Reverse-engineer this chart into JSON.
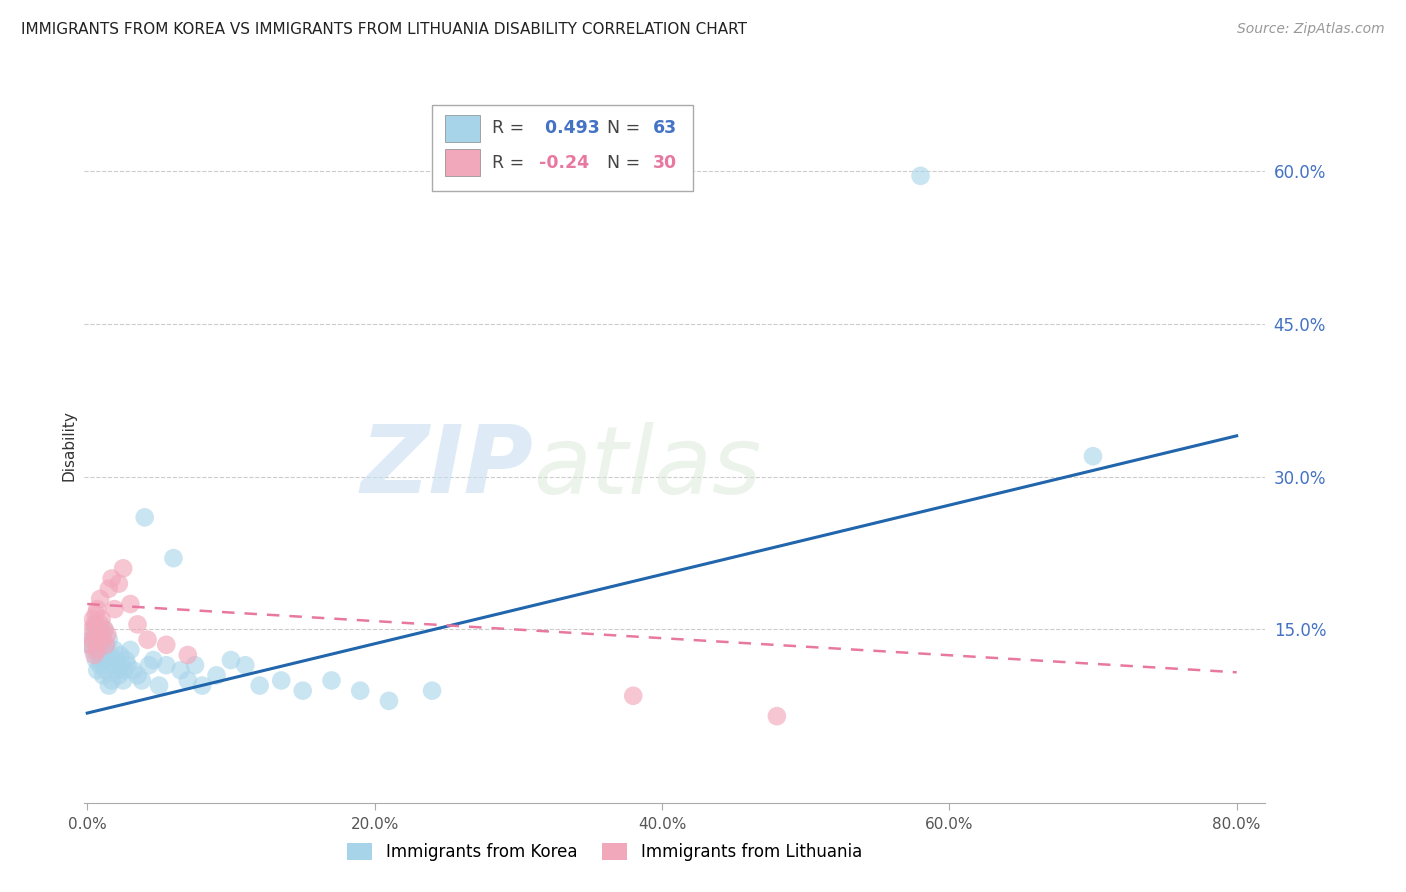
{
  "title": "IMMIGRANTS FROM KOREA VS IMMIGRANTS FROM LITHUANIA DISABILITY CORRELATION CHART",
  "source": "Source: ZipAtlas.com",
  "ylabel": "Disability",
  "xlim": [
    -0.002,
    0.82
  ],
  "ylim": [
    -0.02,
    0.68
  ],
  "yticks": [
    0.15,
    0.3,
    0.45,
    0.6
  ],
  "ytick_labels": [
    "15.0%",
    "30.0%",
    "45.0%",
    "60.0%"
  ],
  "xticks": [
    0.0,
    0.2,
    0.4,
    0.6,
    0.8
  ],
  "xtick_labels": [
    "0.0%",
    "20.0%",
    "40.0%",
    "60.0%",
    "80.0%"
  ],
  "korea_R": 0.493,
  "korea_N": 63,
  "lithuania_R": -0.24,
  "lithuania_N": 30,
  "korea_color": "#a8d4ea",
  "lithuania_color": "#f2a8bb",
  "korea_line_color": "#2166ac",
  "lithuania_line_color": "#e878a0",
  "watermark_zip": "ZIP",
  "watermark_atlas": "atlas",
  "korea_x": [
    0.002,
    0.003,
    0.004,
    0.005,
    0.005,
    0.006,
    0.006,
    0.007,
    0.007,
    0.008,
    0.008,
    0.009,
    0.009,
    0.01,
    0.01,
    0.011,
    0.011,
    0.012,
    0.012,
    0.013,
    0.013,
    0.014,
    0.015,
    0.015,
    0.016,
    0.017,
    0.018,
    0.019,
    0.02,
    0.021,
    0.022,
    0.023,
    0.024,
    0.025,
    0.026,
    0.027,
    0.028,
    0.03,
    0.032,
    0.035,
    0.038,
    0.04,
    0.043,
    0.046,
    0.05,
    0.055,
    0.06,
    0.065,
    0.07,
    0.075,
    0.08,
    0.09,
    0.1,
    0.11,
    0.12,
    0.135,
    0.15,
    0.17,
    0.19,
    0.21,
    0.24,
    0.58,
    0.7
  ],
  "korea_y": [
    0.135,
    0.14,
    0.13,
    0.145,
    0.15,
    0.12,
    0.155,
    0.11,
    0.14,
    0.125,
    0.15,
    0.115,
    0.135,
    0.12,
    0.145,
    0.105,
    0.13,
    0.125,
    0.15,
    0.11,
    0.135,
    0.12,
    0.095,
    0.14,
    0.125,
    0.1,
    0.115,
    0.13,
    0.12,
    0.11,
    0.105,
    0.125,
    0.115,
    0.1,
    0.11,
    0.12,
    0.115,
    0.13,
    0.11,
    0.105,
    0.1,
    0.26,
    0.115,
    0.12,
    0.095,
    0.115,
    0.22,
    0.11,
    0.1,
    0.115,
    0.095,
    0.105,
    0.12,
    0.115,
    0.095,
    0.1,
    0.09,
    0.1,
    0.09,
    0.08,
    0.09,
    0.595,
    0.32
  ],
  "lithuania_x": [
    0.002,
    0.003,
    0.004,
    0.004,
    0.005,
    0.005,
    0.006,
    0.006,
    0.007,
    0.007,
    0.008,
    0.009,
    0.009,
    0.01,
    0.011,
    0.012,
    0.013,
    0.014,
    0.015,
    0.017,
    0.019,
    0.022,
    0.025,
    0.03,
    0.035,
    0.042,
    0.055,
    0.07,
    0.38,
    0.48
  ],
  "lithuania_y": [
    0.135,
    0.15,
    0.14,
    0.16,
    0.125,
    0.155,
    0.145,
    0.165,
    0.13,
    0.17,
    0.145,
    0.155,
    0.18,
    0.16,
    0.14,
    0.15,
    0.135,
    0.145,
    0.19,
    0.2,
    0.17,
    0.195,
    0.21,
    0.175,
    0.155,
    0.14,
    0.135,
    0.125,
    0.085,
    0.065
  ],
  "korea_trend_x": [
    0.0,
    0.8
  ],
  "korea_trend_y": [
    0.068,
    0.34
  ],
  "lithuania_trend_x": [
    0.0,
    0.8
  ],
  "lithuania_trend_y": [
    0.175,
    0.108
  ]
}
